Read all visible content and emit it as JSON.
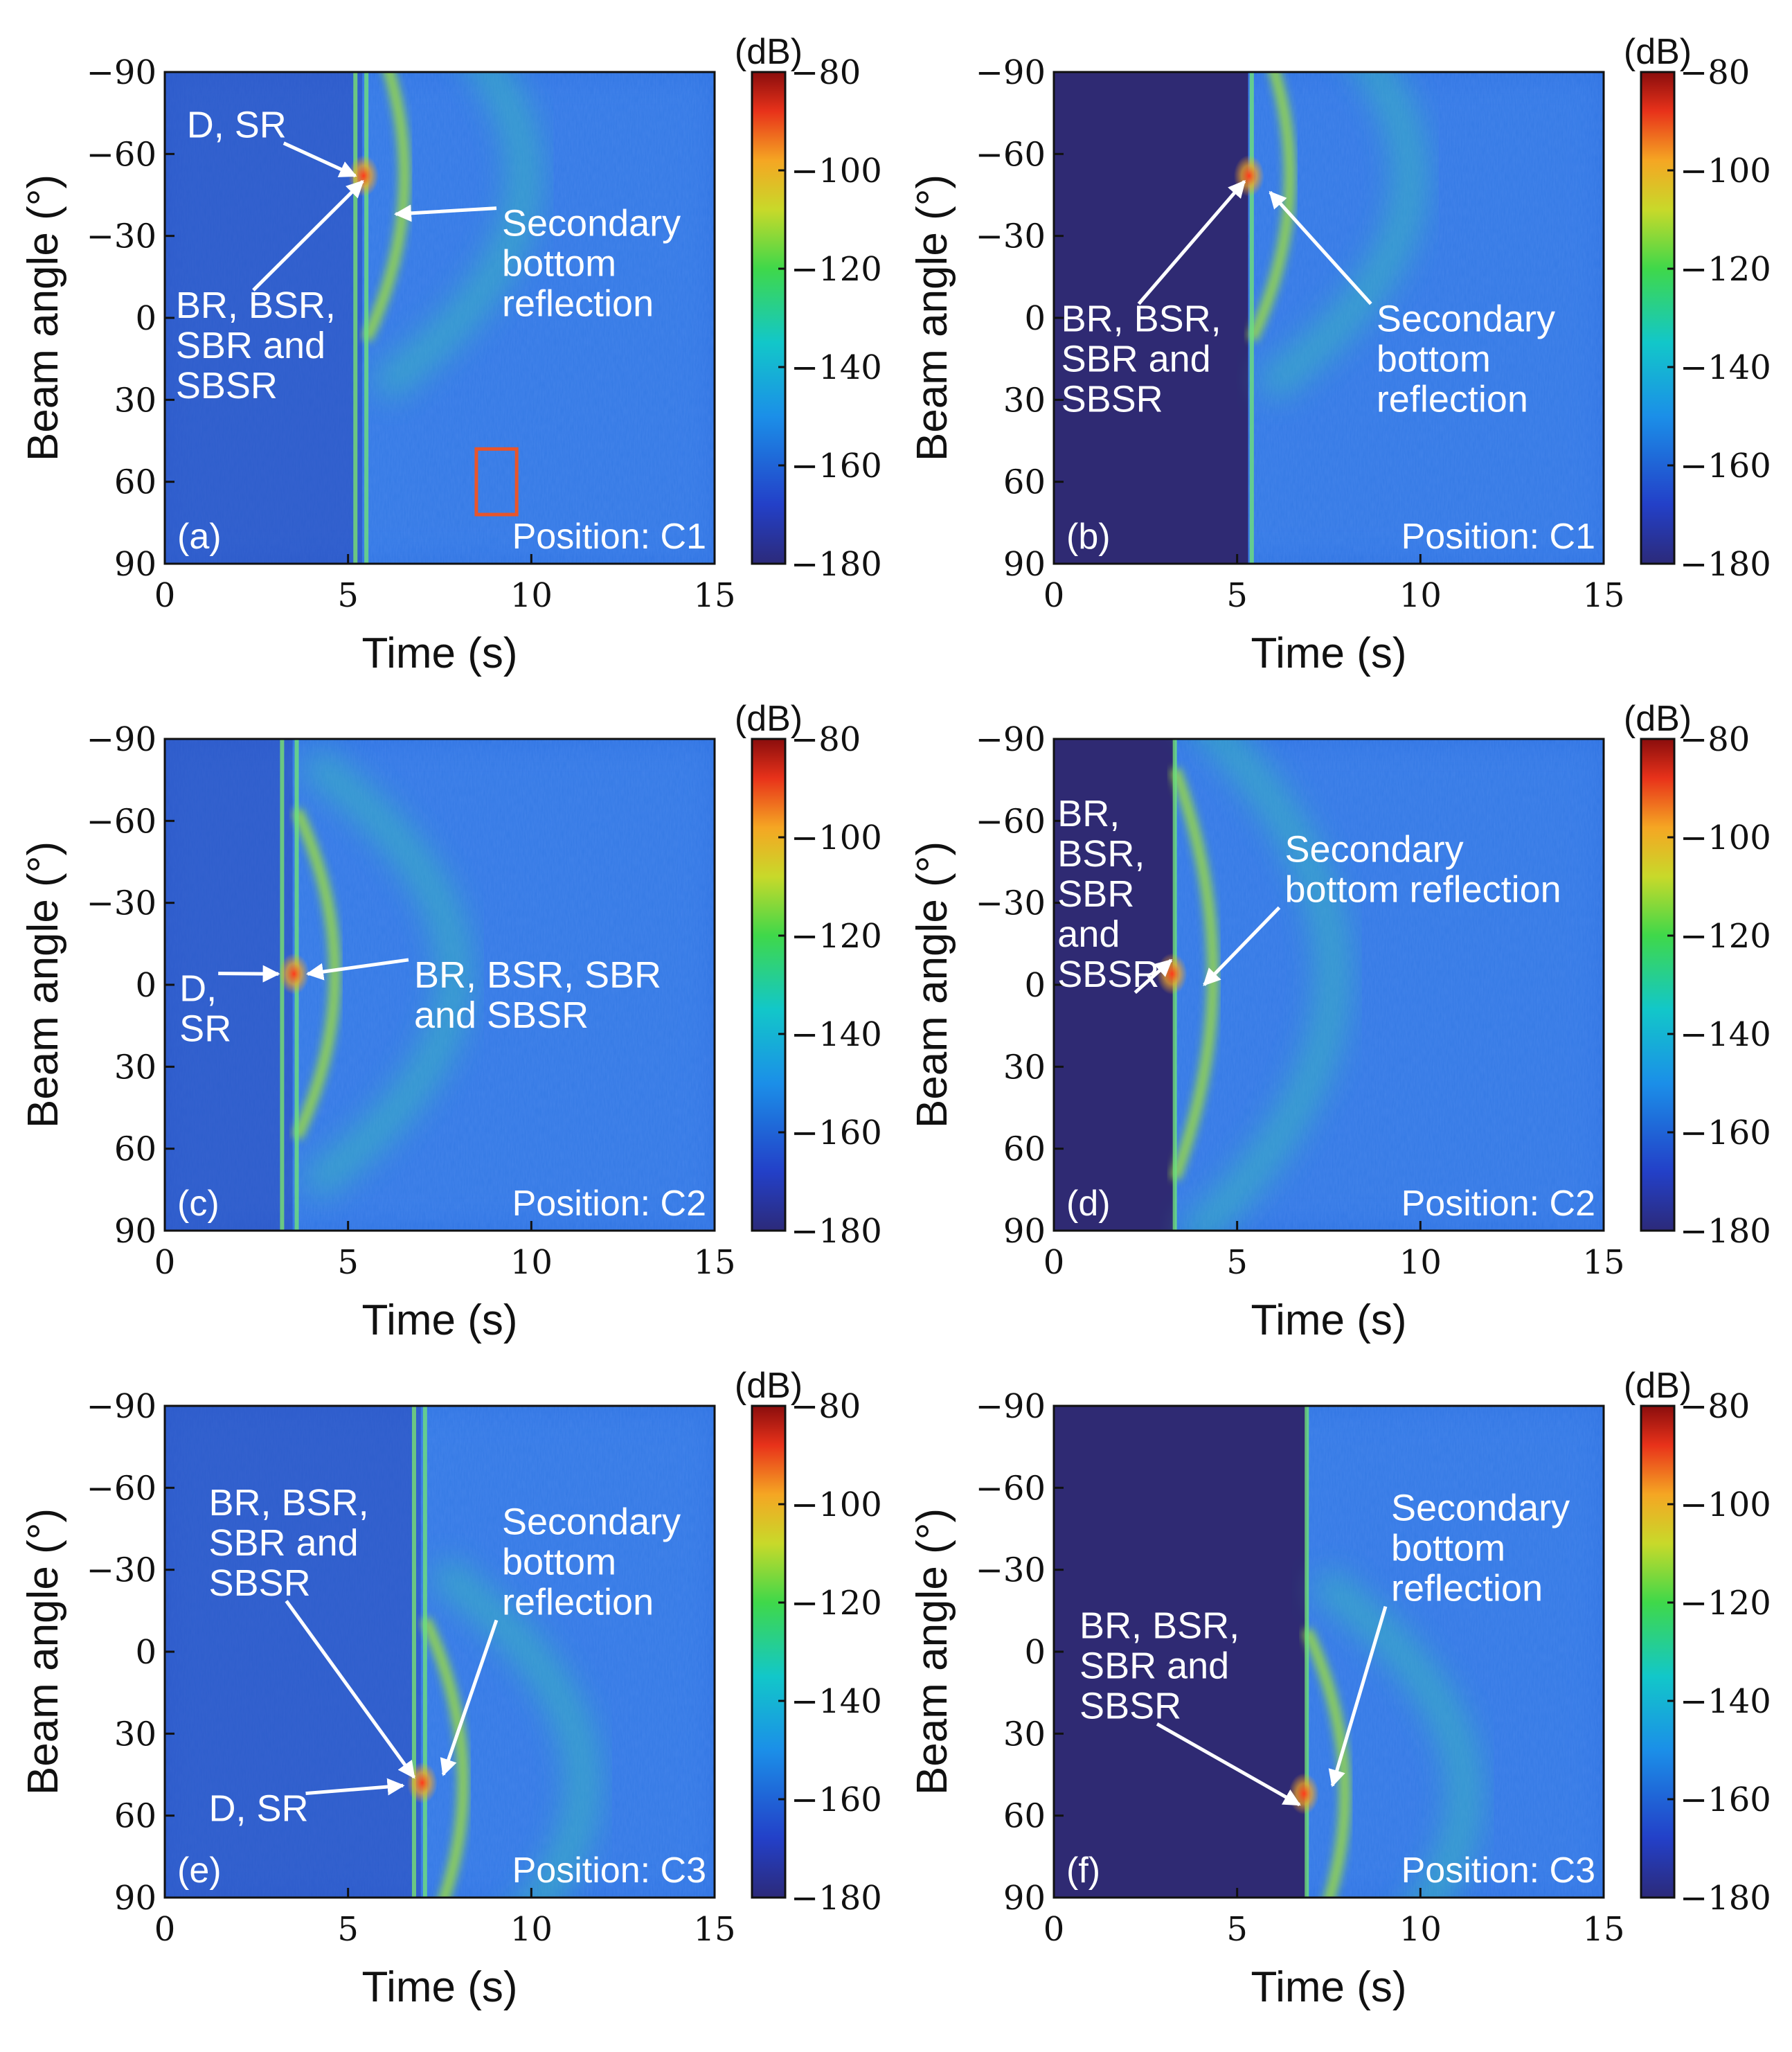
{
  "chart_data": [
    {
      "type": "heatmap",
      "panel_label": "(a)",
      "position_label": "Position: C1",
      "colorbar_label": "(dB)",
      "xlabel": "Time (s)",
      "ylabel": "Beam angle (°)",
      "xlim": [
        0,
        15
      ],
      "ylim": [
        -90,
        90
      ],
      "clim": [
        -180,
        -80
      ],
      "xticks": [
        "0",
        "5",
        "10",
        "15"
      ],
      "yticks": [
        "−90",
        "−60",
        "−30",
        "0",
        "30",
        "60",
        "90"
      ],
      "cticks": [
        "−80",
        "−100",
        "−120",
        "−140",
        "−160",
        "−180"
      ],
      "masked_until_s": null,
      "direct_arrival_s": 5.2,
      "bottom_reflection_s": 5.5,
      "arc_center_angle_deg": -52,
      "arc_span_deg": 60,
      "annotations": [
        {
          "text": "D, SR",
          "text_xy": [
            0.6,
            -66
          ],
          "arrow_to": [
            5.2,
            -52
          ]
        },
        {
          "text": "BR, BSR,\nSBR and\nSBSR",
          "text_xy": [
            0.3,
            0
          ],
          "arrow_to": [
            5.4,
            -50
          ]
        },
        {
          "text": "Secondary\nbottom\nreflection",
          "text_xy": [
            9.2,
            -30
          ],
          "arrow_to": [
            6.3,
            -38
          ]
        }
      ],
      "highlight_box_s": [
        8.5,
        9.6
      ],
      "highlight_box_deg": [
        48,
        72
      ]
    },
    {
      "type": "heatmap",
      "panel_label": "(b)",
      "position_label": "Position: C1",
      "colorbar_label": "(dB)",
      "xlabel": "Time (s)",
      "ylabel": "Beam angle (°)",
      "xlim": [
        0,
        15
      ],
      "ylim": [
        -90,
        90
      ],
      "clim": [
        -180,
        -80
      ],
      "xticks": [
        "0",
        "5",
        "10",
        "15"
      ],
      "yticks": [
        "−90",
        "−60",
        "−30",
        "0",
        "30",
        "60",
        "90"
      ],
      "cticks": [
        "−80",
        "−100",
        "−120",
        "−140",
        "−160",
        "−180"
      ],
      "masked_until_s": 5.3,
      "direct_arrival_s": null,
      "bottom_reflection_s": 5.4,
      "arc_center_angle_deg": -52,
      "arc_span_deg": 60,
      "annotations": [
        {
          "text": "BR, BSR,\nSBR and\nSBSR",
          "text_xy": [
            0.2,
            5
          ],
          "arrow_to": [
            5.2,
            -50
          ]
        },
        {
          "text": "Secondary\nbottom\nreflection",
          "text_xy": [
            8.8,
            5
          ],
          "arrow_to": [
            5.9,
            -46
          ]
        }
      ]
    },
    {
      "type": "heatmap",
      "panel_label": "(c)",
      "position_label": "Position: C2",
      "colorbar_label": "(dB)",
      "xlabel": "Time (s)",
      "ylabel": "Beam angle (°)",
      "xlim": [
        0,
        15
      ],
      "ylim": [
        -90,
        90
      ],
      "clim": [
        -180,
        -80
      ],
      "xticks": [
        "0",
        "5",
        "10",
        "15"
      ],
      "yticks": [
        "−90",
        "−60",
        "−30",
        "0",
        "30",
        "60",
        "90"
      ],
      "cticks": [
        "−80",
        "−100",
        "−120",
        "−140",
        "−160",
        "−180"
      ],
      "masked_until_s": null,
      "direct_arrival_s": 3.2,
      "bottom_reflection_s": 3.6,
      "arc_center_angle_deg": -4,
      "arc_span_deg": 60,
      "annotations": [
        {
          "text": "D,\nSR",
          "text_xy": [
            0.4,
            6
          ],
          "arrow_to": [
            3.1,
            -4
          ]
        },
        {
          "text": "BR, BSR, SBR\nand SBSR",
          "text_xy": [
            6.8,
            1
          ],
          "arrow_to": [
            3.9,
            -4
          ]
        }
      ]
    },
    {
      "type": "heatmap",
      "panel_label": "(d)",
      "position_label": "Position: C2",
      "colorbar_label": "(dB)",
      "xlabel": "Time (s)",
      "ylabel": "Beam angle (°)",
      "xlim": [
        0,
        15
      ],
      "ylim": [
        -90,
        90
      ],
      "clim": [
        -180,
        -80
      ],
      "xticks": [
        "0",
        "5",
        "10",
        "15"
      ],
      "yticks": [
        "−90",
        "−60",
        "−30",
        "0",
        "30",
        "60",
        "90"
      ],
      "cticks": [
        "−80",
        "−100",
        "−120",
        "−140",
        "−160",
        "−180"
      ],
      "masked_until_s": 3.3,
      "direct_arrival_s": null,
      "bottom_reflection_s": 3.3,
      "arc_center_angle_deg": -4,
      "arc_span_deg": 75,
      "annotations": [
        {
          "text": "BR,\nBSR,\nSBR\nand\nSBSR",
          "text_xy": [
            0.1,
            -58
          ],
          "arrow_to": [
            3.2,
            -9
          ]
        },
        {
          "text": "Secondary\nbottom reflection",
          "text_xy": [
            6.3,
            -45
          ],
          "arrow_to": [
            4.1,
            0
          ]
        }
      ]
    },
    {
      "type": "heatmap",
      "panel_label": "(e)",
      "position_label": "Position: C3",
      "colorbar_label": "(dB)",
      "xlabel": "Time (s)",
      "ylabel": "Beam angle (°)",
      "xlim": [
        0,
        15
      ],
      "ylim": [
        -90,
        90
      ],
      "clim": [
        -180,
        -80
      ],
      "xticks": [
        "0",
        "5",
        "10",
        "15"
      ],
      "yticks": [
        "−90",
        "−60",
        "−30",
        "0",
        "30",
        "60",
        "90"
      ],
      "cticks": [
        "−80",
        "−100",
        "−120",
        "−140",
        "−160",
        "−180"
      ],
      "masked_until_s": null,
      "direct_arrival_s": 6.8,
      "bottom_reflection_s": 7.1,
      "arc_center_angle_deg": 48,
      "arc_span_deg": 60,
      "annotations": [
        {
          "text": "BR, BSR,\nSBR and\nSBSR",
          "text_xy": [
            1.2,
            -50
          ],
          "arrow_to": [
            6.8,
            46
          ]
        },
        {
          "text": "D, SR",
          "text_xy": [
            1.2,
            62
          ],
          "arrow_to": [
            6.5,
            49
          ]
        },
        {
          "text": "Secondary\nbottom\nreflection",
          "text_xy": [
            9.2,
            -43
          ],
          "arrow_to": [
            7.6,
            45
          ]
        }
      ]
    },
    {
      "type": "heatmap",
      "panel_label": "(f)",
      "position_label": "Position: C3",
      "colorbar_label": "(dB)",
      "xlabel": "Time (s)",
      "ylabel": "Beam angle (°)",
      "xlim": [
        0,
        15
      ],
      "ylim": [
        -90,
        90
      ],
      "clim": [
        -180,
        -80
      ],
      "xticks": [
        "0",
        "5",
        "10",
        "15"
      ],
      "yticks": [
        "−90",
        "−60",
        "−30",
        "0",
        "30",
        "60",
        "90"
      ],
      "cticks": [
        "−80",
        "−100",
        "−120",
        "−140",
        "−160",
        "−180"
      ],
      "masked_until_s": 6.9,
      "direct_arrival_s": null,
      "bottom_reflection_s": 6.9,
      "arc_center_angle_deg": 52,
      "arc_span_deg": 60,
      "annotations": [
        {
          "text": "BR, BSR,\nSBR and\nSBSR",
          "text_xy": [
            0.7,
            -5
          ],
          "arrow_to": [
            6.7,
            56
          ]
        },
        {
          "text": "Secondary\nbottom\nreflection",
          "text_xy": [
            9.2,
            -48
          ],
          "arrow_to": [
            7.6,
            49
          ]
        }
      ]
    }
  ]
}
